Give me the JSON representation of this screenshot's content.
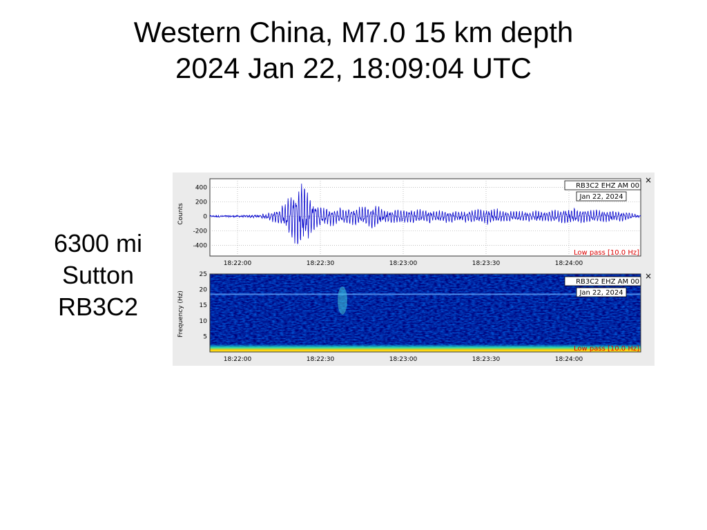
{
  "title": {
    "line1": "Western China, M7.0 15 km depth",
    "line2": "2024 Jan 22, 18:09:04 UTC"
  },
  "station": {
    "distance": "6300 mi",
    "location": "Sutton",
    "code": "RB3C2"
  },
  "colors": {
    "trace": "#0000cc",
    "filter_text": "#dd0000",
    "panel_bg": "#ebebeb",
    "spectrogram_low": "#00007a",
    "spectrogram_high": "#ffcc00"
  },
  "icons": {
    "close": "close-icon"
  },
  "chart_data": [
    {
      "type": "line",
      "channel_label": "RB3C2 EHZ AM 00",
      "date_label": "Jan 22, 2024",
      "filter_label": "Low pass [10.0 Hz]",
      "ylabel": "Counts",
      "xlabel": "",
      "xticks": [
        "18:22:00",
        "18:22:30",
        "18:23:00",
        "18:23:30",
        "18:24:00"
      ],
      "yticks": [
        400,
        200,
        0,
        -200,
        -400
      ],
      "xlim": [
        "18:21:50",
        "18:24:26"
      ],
      "ylim": [
        -550,
        520
      ],
      "grid": true,
      "series": [
        {
          "x": [
            "18:21:50",
            "18:22:00",
            "18:22:10",
            "18:22:15",
            "18:22:18",
            "18:22:20",
            "18:22:22",
            "18:22:24",
            "18:22:26",
            "18:22:28",
            "18:22:30",
            "18:22:34",
            "18:22:40",
            "18:22:45",
            "18:22:50",
            "18:22:54",
            "18:23:00",
            "18:23:10",
            "18:23:20",
            "18:23:30",
            "18:23:40",
            "18:23:50",
            "18:24:00",
            "18:24:10",
            "18:24:20",
            "18:24:26"
          ],
          "values": [
            0,
            0,
            30,
            120,
            260,
            450,
            500,
            480,
            380,
            240,
            160,
            130,
            120,
            150,
            180,
            100,
            120,
            100,
            80,
            120,
            80,
            80,
            120,
            100,
            80,
            0
          ]
        }
      ]
    },
    {
      "type": "heatmap",
      "channel_label": "RB3C2 EHZ AM 00",
      "date_label": "Jan 22, 2024",
      "filter_label": "Low pass [10.0 Hz]",
      "ylabel": "Frequency (Hz)",
      "xlabel": "",
      "xticks": [
        "18:22:00",
        "18:22:30",
        "18:23:00",
        "18:23:30",
        "18:24:00"
      ],
      "yticks": [
        25,
        20,
        15,
        10,
        5
      ],
      "xlim": [
        "18:21:50",
        "18:24:26"
      ],
      "ylim": [
        0,
        25
      ],
      "features": [
        {
          "kind": "band",
          "freq_hz": 0.5,
          "intensity": "high"
        },
        {
          "kind": "line",
          "freq_hz": 18.5,
          "intensity": "medium"
        },
        {
          "kind": "burst",
          "time": "18:22:38",
          "freq_hz": [
            12,
            21
          ],
          "intensity": "medium"
        }
      ]
    }
  ]
}
